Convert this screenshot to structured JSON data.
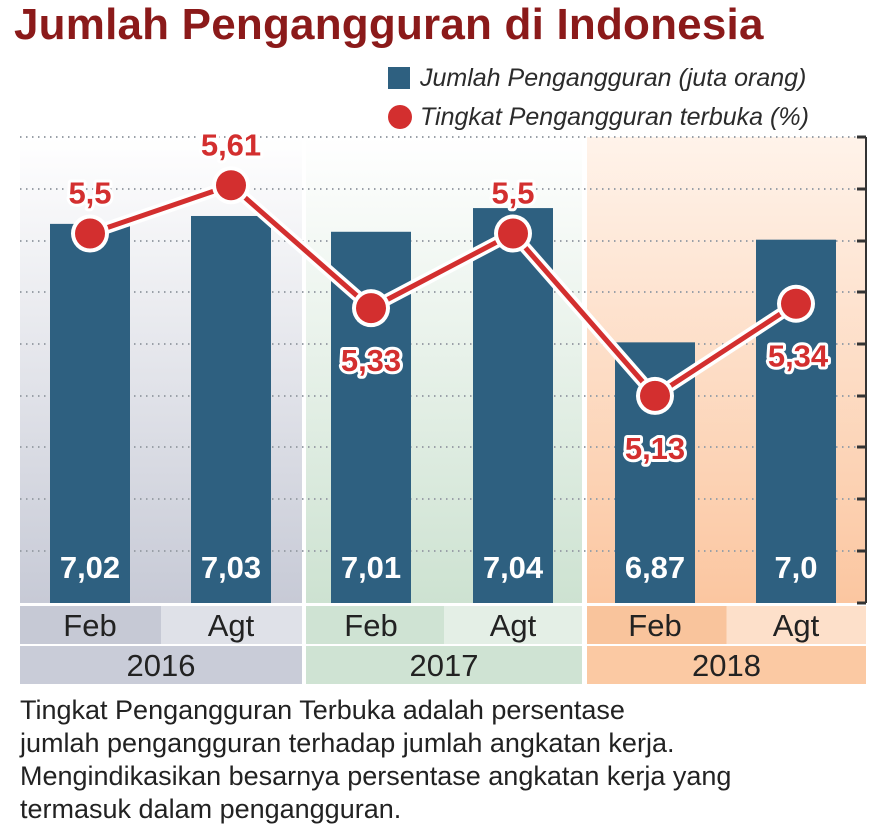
{
  "title": "Jumlah Pengangguran di Indonesia",
  "legend": {
    "bars": "Jumlah Pengangguran (juta orang)",
    "line": "Tingkat Pengangguran terbuka (%)"
  },
  "note_lines": [
    "Tingkat Pengangguran Terbuka adalah persentase",
    "jumlah pengangguran terhadap jumlah angkatan kerja.",
    "Mengindikasikan besarnya persentase angkatan kerja yang",
    "termasuk dalam pengangguran."
  ],
  "colors": {
    "bar": "#2e6080",
    "line": "#d32f2f",
    "title": "#8b1a1a",
    "panel_2016": "#c9ccd8",
    "panel_2017": "#cfe3d3",
    "panel_2018": "#fbc9a3"
  },
  "chart_data": {
    "type": "bar",
    "years": [
      "2016",
      "2017",
      "2018"
    ],
    "categories": [
      "Feb",
      "Agt",
      "Feb",
      "Agt",
      "Feb",
      "Agt"
    ],
    "category_year": [
      "2016",
      "2016",
      "2017",
      "2017",
      "2018",
      "2018"
    ],
    "series": [
      {
        "name": "Jumlah Pengangguran (juta orang)",
        "type": "bar",
        "values": [
          7.02,
          7.03,
          7.01,
          7.04,
          6.87,
          7.0
        ]
      },
      {
        "name": "Tingkat Pengangguran terbuka (%)",
        "type": "line",
        "values": [
          5.5,
          5.61,
          5.33,
          5.5,
          5.13,
          5.34
        ]
      }
    ],
    "bar_labels": [
      "7,02",
      "7,03",
      "7,01",
      "7,04",
      "6,87",
      "7,0"
    ],
    "line_labels": [
      "5,5",
      "5,61",
      "5,33",
      "5,5",
      "5,13",
      "5,34"
    ],
    "bar_axis_range": [
      6.54,
      7.13
    ],
    "line_axis_range": [
      5.05,
      5.72
    ],
    "grid": true,
    "legend_position": "top-right"
  }
}
